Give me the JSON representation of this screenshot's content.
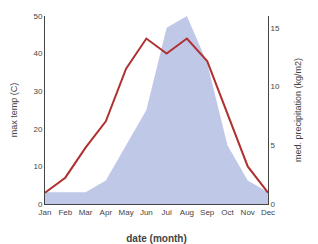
{
  "chart_data": {
    "type": "line",
    "categories": [
      "Jan",
      "Feb",
      "Mar",
      "Apr",
      "May",
      "Jun",
      "Jul",
      "Aug",
      "Sep",
      "Oct",
      "Nov",
      "Dec"
    ],
    "xlabel": "date (month)",
    "ylabel": "max temp (C)",
    "y2label": "med. precipitation (kg/m2)",
    "series": [
      {
        "type": "area",
        "color": "#c0c8e8",
        "axis": "y2",
        "values": [
          1,
          1,
          1,
          2,
          5,
          8,
          15,
          16,
          12,
          5,
          2,
          1
        ]
      },
      {
        "type": "line",
        "color": "#b03030",
        "values": [
          3,
          7,
          15,
          22,
          36,
          44,
          40,
          44,
          38,
          24,
          10,
          3
        ]
      }
    ],
    "ylim": [
      0,
      50
    ],
    "yticks": [
      0,
      10,
      20,
      30,
      40,
      50
    ],
    "y2lim": [
      0,
      16
    ],
    "y2ticks": [
      0,
      5,
      10,
      15
    ],
    "grid": false
  }
}
